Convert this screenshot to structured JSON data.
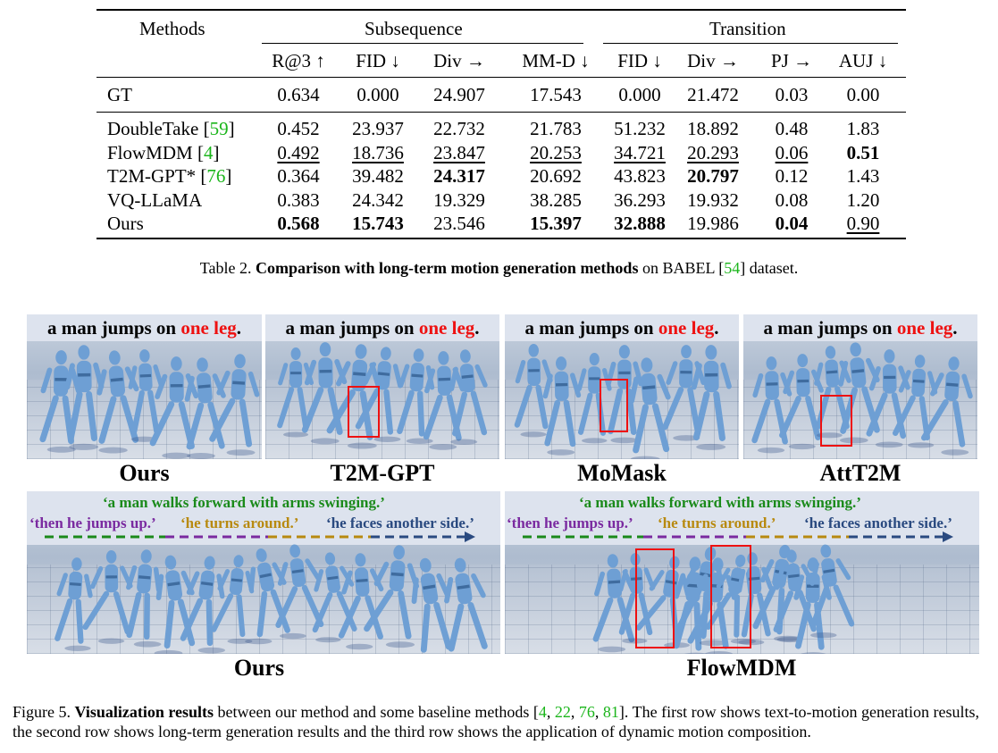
{
  "table": {
    "head": {
      "methods": "Methods",
      "subsequence": "Subsequence",
      "transition": "Transition",
      "metrics": [
        "R@3 ↑",
        "FID ↓",
        "Div →",
        "MM-D ↓",
        "FID ↓",
        "Div →",
        "PJ →",
        "AUJ ↓"
      ]
    },
    "rows": [
      {
        "method": "GT",
        "cite": "",
        "values": [
          "0.634",
          "0.000",
          "24.907",
          "17.543",
          "0.000",
          "21.472",
          "0.03",
          "0.00"
        ]
      },
      {
        "method": "DoubleTake",
        "cite": "59",
        "values": [
          "0.452",
          "23.937",
          "22.732",
          "21.783",
          "51.232",
          "18.892",
          "0.48",
          "1.83"
        ]
      },
      {
        "method": "FlowMDM",
        "cite": "4",
        "values": [
          "0.492",
          "18.736",
          "23.847",
          "20.253",
          "34.721",
          "20.293",
          "0.06",
          "0.51"
        ]
      },
      {
        "method": "T2M-GPT*",
        "cite": "76",
        "values": [
          "0.364",
          "39.482",
          "24.317",
          "20.692",
          "43.823",
          "20.797",
          "0.12",
          "1.43"
        ]
      },
      {
        "method": "VQ-LLaMA",
        "cite": "",
        "values": [
          "0.383",
          "24.342",
          "19.329",
          "38.285",
          "36.293",
          "19.932",
          "0.08",
          "1.20"
        ]
      },
      {
        "method": "Ours",
        "cite": "",
        "values": [
          "0.568",
          "15.743",
          "23.546",
          "15.397",
          "32.888",
          "19.986",
          "0.04",
          "0.90"
        ]
      }
    ],
    "caption": {
      "prefix": "Table 2. ",
      "bold": "Comparison with long-term motion generation methods",
      "middle": " on BABEL [",
      "cite": "54",
      "suffix": "] dataset."
    }
  },
  "figure": {
    "prompt_top": {
      "a": "a man jumps on ",
      "b": "one leg",
      "c": "."
    },
    "row1_labels": [
      "Ours",
      "T2M-GPT",
      "MoMask",
      "AttT2M"
    ],
    "row2": {
      "line1": "‘a man walks forward with arms swinging.’",
      "segs": [
        "‘then he jumps up.’",
        "‘he turns around.’",
        "‘he faces another side.’"
      ],
      "labels": [
        "Ours",
        "FlowMDM"
      ]
    },
    "colors": {
      "green": "#1a8a1a",
      "purple": "#7a2aa0",
      "gold": "#b88a10",
      "blue": "#2a4a80",
      "red": "#ee1111",
      "body": "#6e9fd4"
    },
    "caption": {
      "prefix": "Figure 5. ",
      "bold": "Visualization results",
      "text1": " between our method and some baseline methods [",
      "c1": "4",
      "sep1": ", ",
      "c2": "22",
      "sep2": ", ",
      "c3": "76",
      "sep3": ", ",
      "c4": "81",
      "text2": "]. The first row shows text-to-motion generation results, the second row shows long-term generation results and the third row shows the application of dynamic motion composition."
    }
  }
}
